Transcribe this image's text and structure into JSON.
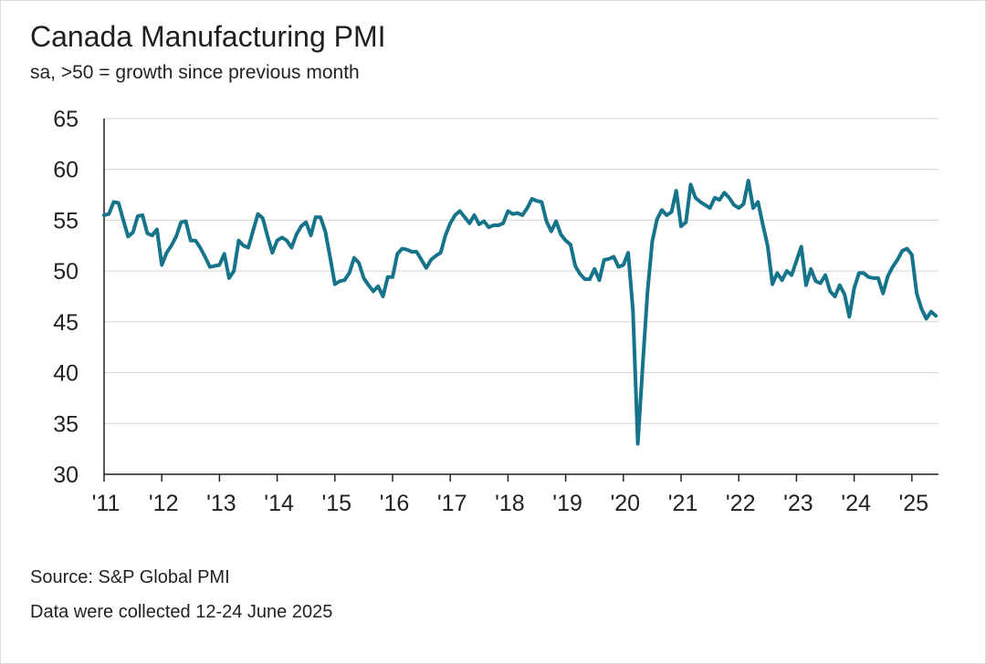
{
  "title": "Canada Manufacturing PMI",
  "subtitle": "sa, >50 = growth since previous month",
  "footer": {
    "source": "Source: S&P Global PMI",
    "collected": "Data were collected 12-24 June 2025"
  },
  "line_color": "#157489",
  "chart_data": {
    "type": "line",
    "title": "Canada Manufacturing PMI",
    "ylim": [
      30,
      65
    ],
    "yticks": [
      30,
      35,
      40,
      45,
      50,
      55,
      60,
      65
    ],
    "xticks": [
      "'11",
      "'12",
      "'13",
      "'14",
      "'15",
      "'16",
      "'17",
      "'18",
      "'19",
      "'20",
      "'21",
      "'22",
      "'23",
      "'24",
      "'25"
    ],
    "x_start": "2011-01",
    "grid": "horizontal",
    "series": [
      {
        "values": [
          55.5,
          55.6,
          56.8,
          56.7,
          55.0,
          53.4,
          53.8,
          55.4,
          55.5,
          53.7,
          53.5,
          54.1,
          50.6,
          51.8,
          52.5,
          53.4,
          54.8,
          54.9,
          53.0,
          53.0,
          52.3,
          51.4,
          50.4,
          50.5,
          50.6,
          51.7,
          49.3,
          50.0,
          53.0,
          52.5,
          52.3,
          54.0,
          55.6,
          55.2,
          53.4,
          51.8,
          53.0,
          53.3,
          53.0,
          52.3,
          53.6,
          54.4,
          54.8,
          53.5,
          55.3,
          55.3,
          53.9,
          51.4,
          48.7,
          49.0,
          49.1,
          49.8,
          51.3,
          50.8,
          49.3,
          48.6,
          48.0,
          48.5,
          47.5,
          49.4,
          49.4,
          51.7,
          52.2,
          52.1,
          51.9,
          51.9,
          51.1,
          50.3,
          51.1,
          51.5,
          51.8,
          53.5,
          54.7,
          55.5,
          55.9,
          55.3,
          54.7,
          55.5,
          54.6,
          54.9,
          54.3,
          54.5,
          54.5,
          54.7,
          55.9,
          55.6,
          55.7,
          55.5,
          56.2,
          57.1,
          56.9,
          56.8,
          54.9,
          53.9,
          54.9,
          53.6,
          53.0,
          52.6,
          50.5,
          49.7,
          49.2,
          49.2,
          50.2,
          49.1,
          51.1,
          51.2,
          51.4,
          50.4,
          50.6,
          51.8,
          46.1,
          33.0,
          40.6,
          47.8,
          52.9,
          55.1,
          56.0,
          55.5,
          55.8,
          57.9,
          54.4,
          54.8,
          58.5,
          57.2,
          56.8,
          56.5,
          56.2,
          57.2,
          57.0,
          57.7,
          57.2,
          56.5,
          56.2,
          56.6,
          58.9,
          56.2,
          56.8,
          54.6,
          52.5,
          48.7,
          49.8,
          49.1,
          50.0,
          49.6,
          51.0,
          52.4,
          48.6,
          50.2,
          49.0,
          48.8,
          49.6,
          48.0,
          47.5,
          48.6,
          47.7,
          45.5,
          48.3,
          49.8,
          49.8,
          49.4,
          49.3,
          49.3,
          47.8,
          49.5,
          50.4,
          51.1,
          52.0,
          52.2,
          51.6,
          47.8,
          46.3,
          45.3,
          46.0,
          45.6
        ]
      }
    ]
  }
}
